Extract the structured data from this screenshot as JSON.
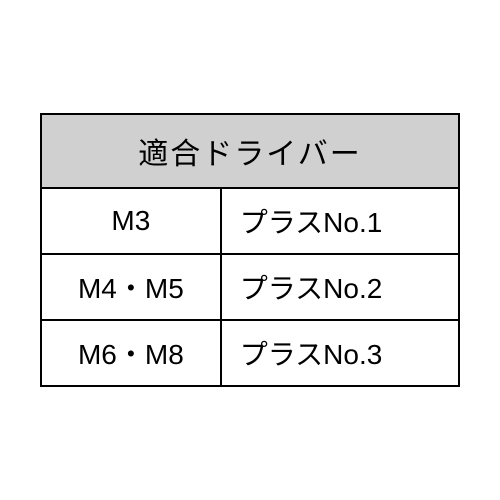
{
  "table": {
    "header": "適合ドライバー",
    "header_bg": "#d0d0d0",
    "header_fontsize": 30,
    "cell_fontsize": 28,
    "border_color": "#000000",
    "background_color": "#ffffff",
    "columns": [
      "size",
      "driver"
    ],
    "rows": [
      {
        "size": "M3",
        "driver": "プラスNo.1"
      },
      {
        "size": "M4・M5",
        "driver": "プラスNo.2"
      },
      {
        "size": "M6・M8",
        "driver": "プラスNo.3"
      }
    ]
  }
}
